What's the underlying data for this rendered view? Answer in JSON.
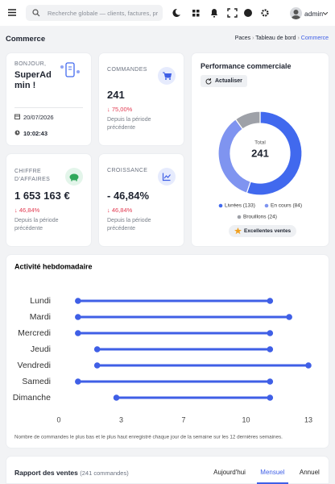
{
  "topbar": {
    "search_placeholder": "Recherche globale — clients, factures, pr",
    "user": "admin"
  },
  "breadcrumb": {
    "title": "Commerce",
    "items": [
      "Paces",
      "Tableau de bord",
      "Commerce"
    ]
  },
  "welcome": {
    "greeting": "BONJOUR,",
    "name": "SuperAd min !",
    "date": "20/07/2026",
    "time": "10:02:43"
  },
  "kpis": [
    {
      "label": "COMMANDES",
      "value": "241",
      "change": "75,00%",
      "note": "Depuis la période précédente"
    },
    {
      "label": "CHIFFRE D'AFFAIRES",
      "value": "1 653 163 €",
      "change": "46,84%",
      "note": "Depuis la période précédente"
    },
    {
      "label": "CROISSANCE",
      "value": "- 46,84%",
      "change": "46,84%",
      "note": "Depuis la période précédente"
    }
  ],
  "performance": {
    "button": "Actualiser",
    "badge": "Excellentes ventes"
  },
  "chart_data": [
    {
      "type": "pie",
      "title": "Performance commerciale",
      "hole": true,
      "categories": [
        "Livrées (133)",
        "En cours (84)",
        "Brouillons (24)"
      ],
      "values": [
        133,
        84,
        24
      ],
      "colors": [
        "#4169ee",
        "#7f94f0",
        "#9ea1a8"
      ],
      "center_label": "Total",
      "center_value": "241"
    },
    {
      "type": "dumbbell",
      "title": "Activité hebdomadaire",
      "categories": [
        "Lundi",
        "Mardi",
        "Mercredi",
        "Jeudi",
        "Vendredi",
        "Samedi",
        "Dimanche"
      ],
      "low": [
        1,
        1,
        1,
        2,
        2,
        1,
        3
      ],
      "high": [
        11,
        12,
        11,
        11,
        13,
        11,
        11
      ],
      "color": "#3f5fe6",
      "xlim": [
        0,
        13
      ],
      "xticks": [
        0,
        {
          "value": 3.25,
          "label": "3"
        },
        {
          "value": 6.5,
          "label": "7"
        },
        {
          "value": 9.75,
          "label": "10"
        },
        13
      ],
      "caption": "Nombre de commandes le plus bas et le plus haut enregistré chaque jour de la semaine sur les 12 dernières semaines."
    }
  ],
  "report": {
    "title": "Rapport des ventes",
    "count": "(241 commandes)",
    "tabs": [
      "Aujourd'hui",
      "Mensuel",
      "Annuel"
    ],
    "active_tab": 1
  }
}
